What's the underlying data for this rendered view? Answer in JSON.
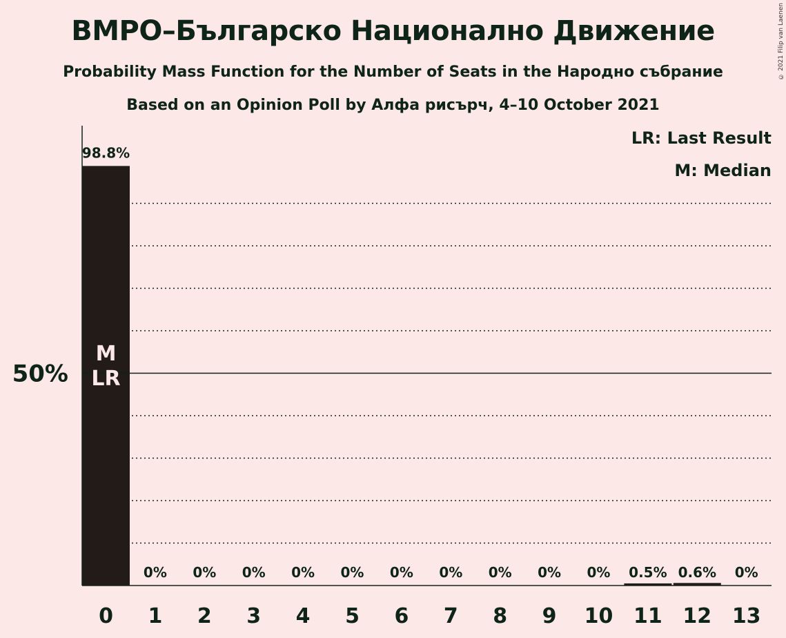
{
  "title": "ВМРО–Българско Национално Движение",
  "subtitle_1": "Probability Mass Function for the Number of Seats in the Народно събрание",
  "subtitle_2": "Based on an Opinion Poll by Алфа рисърч, 4–10 October 2021",
  "copyright": "© 2021 Filip van Laenen",
  "legend": {
    "last_result": "LR: Last Result",
    "median": "M: Median"
  },
  "chart_data": {
    "type": "bar",
    "categories": [
      "0",
      "1",
      "2",
      "3",
      "4",
      "5",
      "6",
      "7",
      "8",
      "9",
      "10",
      "11",
      "12",
      "13"
    ],
    "values": [
      98.8,
      0,
      0,
      0,
      0,
      0,
      0,
      0,
      0,
      0,
      0,
      0.5,
      0.6,
      0
    ],
    "value_labels": [
      "98.8%",
      "0%",
      "0%",
      "0%",
      "0%",
      "0%",
      "0%",
      "0%",
      "0%",
      "0%",
      "0%",
      "0.5%",
      "0.6%",
      "0%"
    ],
    "ylim": [
      0,
      108
    ],
    "ytick_labels": [
      {
        "value": 50,
        "label": "50%"
      }
    ],
    "grid_step": 10,
    "median_category": "0",
    "last_result_category": "0",
    "median_marker": "M",
    "last_result_marker": "LR",
    "bar_color": "#221b17",
    "background": "#fde8e8",
    "xlabel": "",
    "ylabel": ""
  }
}
